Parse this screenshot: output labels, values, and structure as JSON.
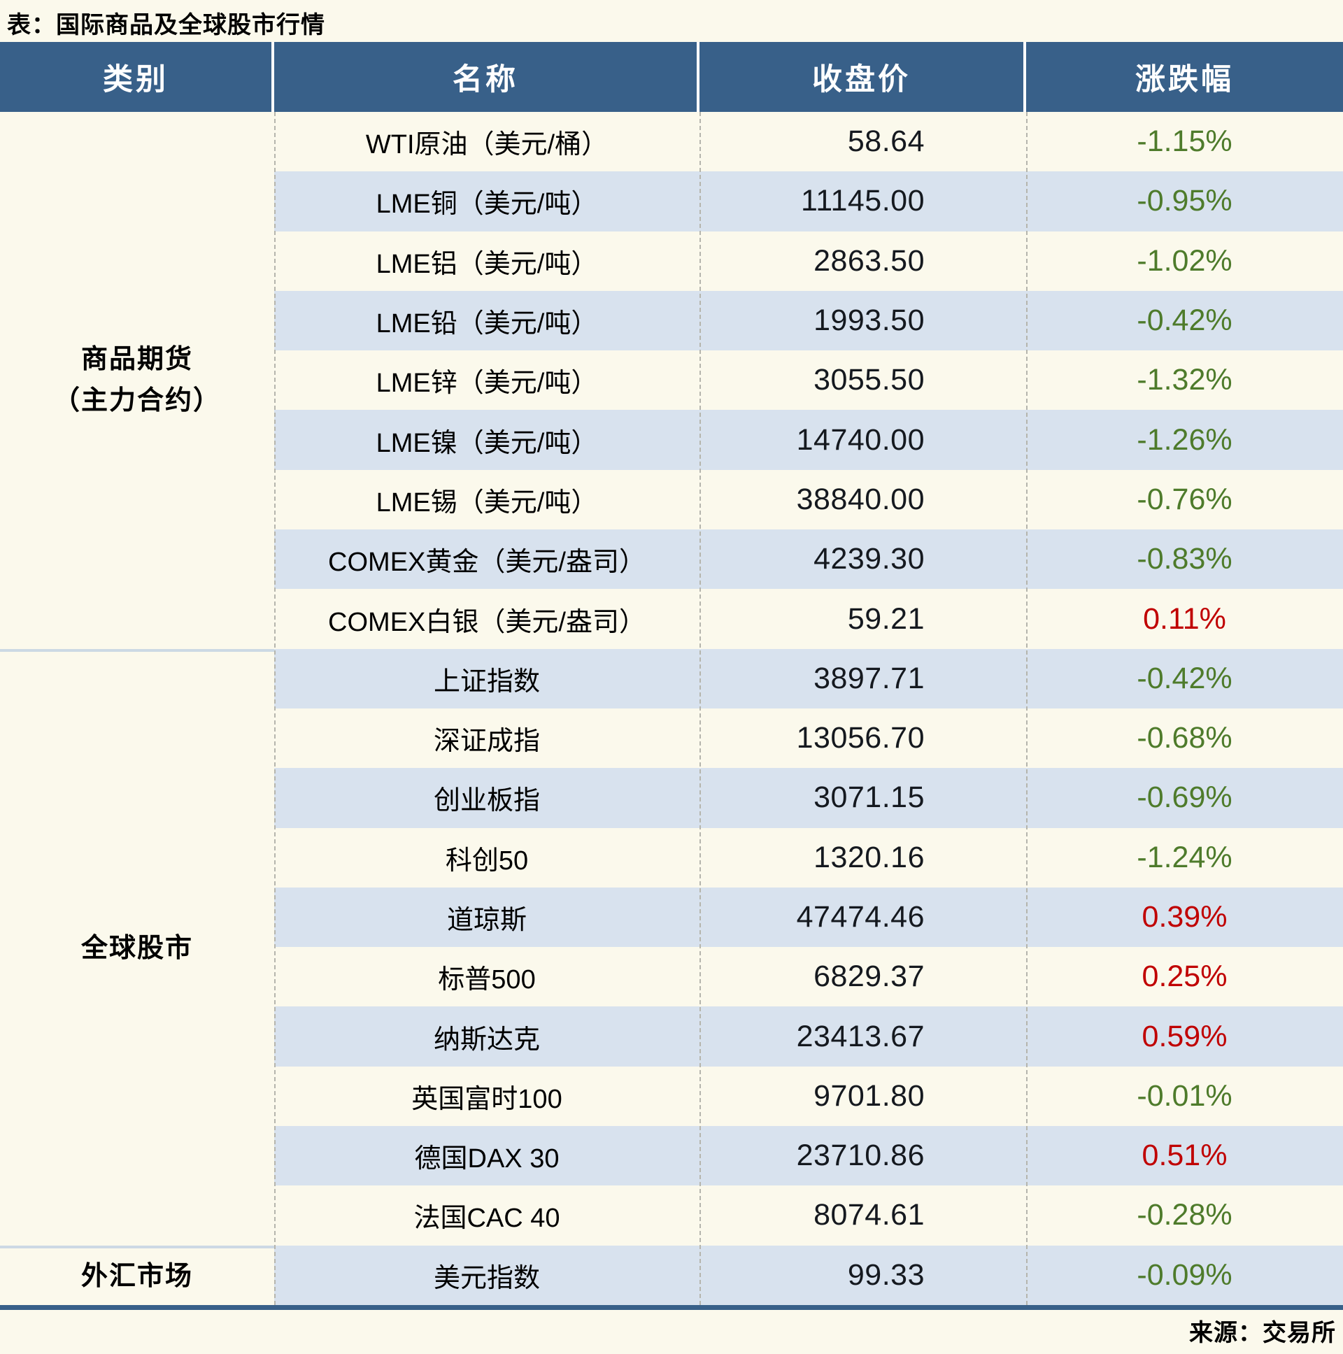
{
  "chart_data": {
    "type": "table",
    "title": "表：国际商品及全球股市行情",
    "columns": [
      "类别",
      "名称",
      "收盘价",
      "涨跌幅"
    ],
    "sections": [
      {
        "category_lines": [
          "商品期货",
          "（主力合约）"
        ],
        "rows": [
          {
            "name": "WTI原油（美元/桶）",
            "close": "58.64",
            "change": "-1.15%",
            "direction": "down"
          },
          {
            "name": "LME铜（美元/吨）",
            "close": "11145.00",
            "change": "-0.95%",
            "direction": "down"
          },
          {
            "name": "LME铝（美元/吨）",
            "close": "2863.50",
            "change": "-1.02%",
            "direction": "down"
          },
          {
            "name": "LME铅（美元/吨）",
            "close": "1993.50",
            "change": "-0.42%",
            "direction": "down"
          },
          {
            "name": "LME锌（美元/吨）",
            "close": "3055.50",
            "change": "-1.32%",
            "direction": "down"
          },
          {
            "name": "LME镍（美元/吨）",
            "close": "14740.00",
            "change": "-1.26%",
            "direction": "down"
          },
          {
            "name": "LME锡（美元/吨）",
            "close": "38840.00",
            "change": "-0.76%",
            "direction": "down"
          },
          {
            "name": "COMEX黄金（美元/盎司）",
            "close": "4239.30",
            "change": "-0.83%",
            "direction": "down"
          },
          {
            "name": "COMEX白银（美元/盎司）",
            "close": "59.21",
            "change": "0.11%",
            "direction": "up"
          }
        ]
      },
      {
        "category_lines": [
          "全球股市"
        ],
        "rows": [
          {
            "name": "上证指数",
            "close": "3897.71",
            "change": "-0.42%",
            "direction": "down"
          },
          {
            "name": "深证成指",
            "close": "13056.70",
            "change": "-0.68%",
            "direction": "down"
          },
          {
            "name": "创业板指",
            "close": "3071.15",
            "change": "-0.69%",
            "direction": "down"
          },
          {
            "name": "科创50",
            "close": "1320.16",
            "change": "-1.24%",
            "direction": "down"
          },
          {
            "name": "道琼斯",
            "close": "47474.46",
            "change": "0.39%",
            "direction": "up"
          },
          {
            "name": "标普500",
            "close": "6829.37",
            "change": "0.25%",
            "direction": "up"
          },
          {
            "name": "纳斯达克",
            "close": "23413.67",
            "change": "0.59%",
            "direction": "up"
          },
          {
            "name": "英国富时100",
            "close": "9701.80",
            "change": "-0.01%",
            "direction": "down"
          },
          {
            "name": "德国DAX 30",
            "close": "23710.86",
            "change": "0.51%",
            "direction": "up"
          },
          {
            "name": "法国CAC 40",
            "close": "8074.61",
            "change": "-0.28%",
            "direction": "down"
          }
        ]
      },
      {
        "category_lines": [
          "外汇市场"
        ],
        "rows": [
          {
            "name": "美元指数",
            "close": "99.33",
            "change": "-0.09%",
            "direction": "down"
          }
        ]
      }
    ],
    "source": "来源：交易所"
  },
  "colors": {
    "page_bg": "#fbf9ec",
    "header_bg": "#386089",
    "stripe": "#d8e2ee",
    "up_red": "#c00000",
    "down_green": "#4e7b2b",
    "section_divider": "#ccd9e4",
    "bottom_border": "#386089"
  }
}
